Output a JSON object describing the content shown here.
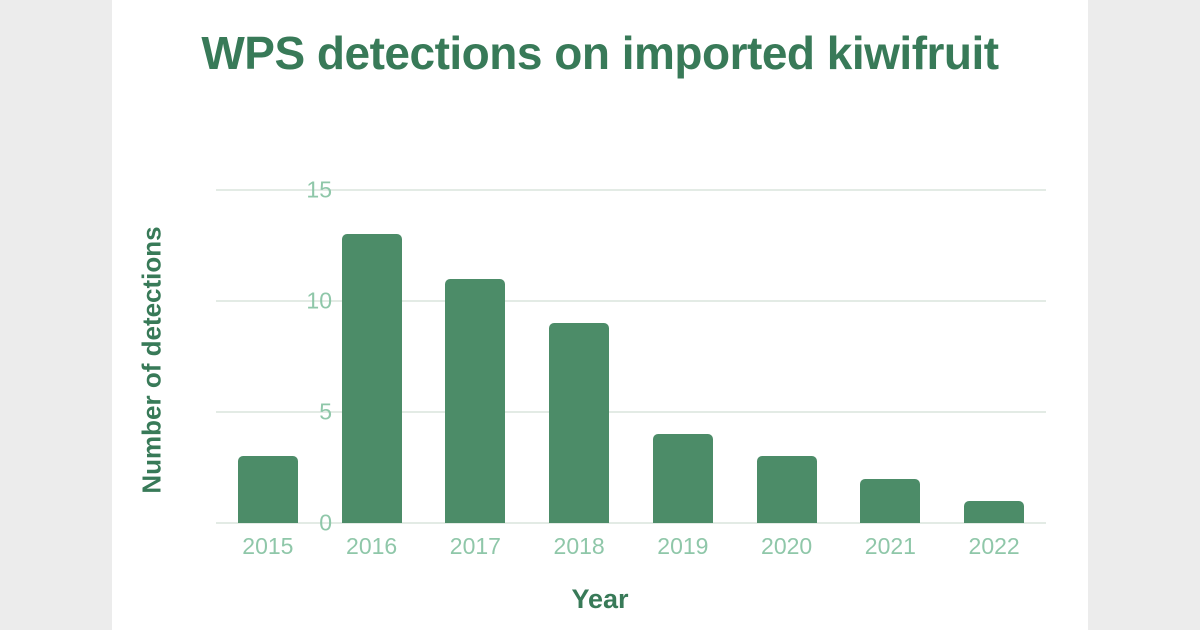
{
  "page": {
    "background_color": "#ececec",
    "card_color": "#ffffff"
  },
  "chart_data": {
    "type": "bar",
    "title": "WPS detections on imported kiwifruit",
    "xlabel": "Year",
    "ylabel": "Number of detections",
    "categories": [
      "2015",
      "2016",
      "2017",
      "2018",
      "2019",
      "2020",
      "2021",
      "2022"
    ],
    "values": [
      3,
      13,
      11,
      9,
      4,
      3,
      2,
      1
    ],
    "yticks": [
      0,
      5,
      10,
      15
    ],
    "ylim": [
      0,
      15
    ],
    "grid": "horizontal",
    "legend": false,
    "colors": {
      "bar": "#4c8c68",
      "title": "#387a58",
      "axis_label": "#387a58",
      "tick_label": "#8fc7a9",
      "gridline": "#e3ebe5"
    }
  }
}
